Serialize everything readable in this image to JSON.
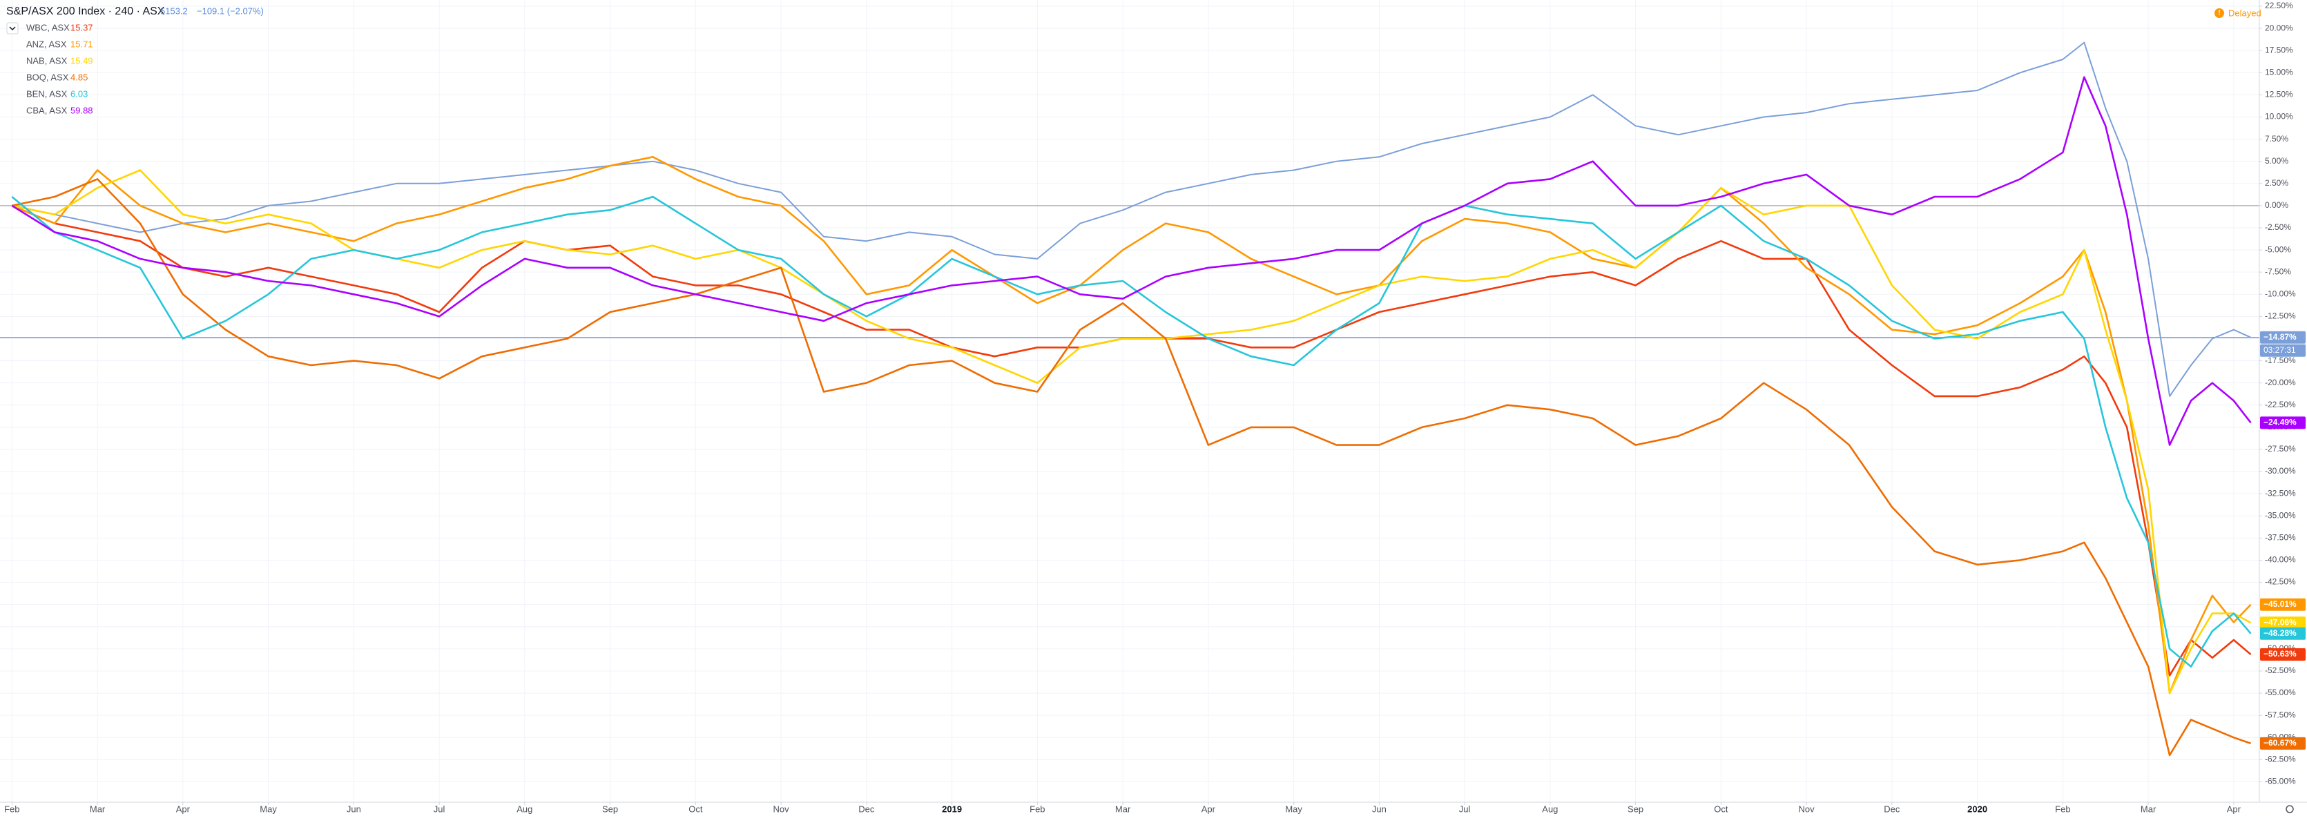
{
  "chart_data": {
    "type": "line",
    "header": {
      "title": "S&P/ASX 200 Index · 240 · ASX",
      "price": 5153.2,
      "change": "−109.1 (−2.07%)"
    },
    "status": "Delayed",
    "countdown": "03:27:31",
    "baseline": 0,
    "grid": true,
    "xlim": [
      -0.14,
      26.3
    ],
    "ylim": [
      -67.3,
      23.2
    ],
    "xticks": [
      {
        "value": 0,
        "label": "Feb"
      },
      {
        "value": 1,
        "label": "Mar"
      },
      {
        "value": 2,
        "label": "Apr"
      },
      {
        "value": 3,
        "label": "May"
      },
      {
        "value": 4,
        "label": "Jun"
      },
      {
        "value": 5,
        "label": "Jul"
      },
      {
        "value": 6,
        "label": "Aug"
      },
      {
        "value": 7,
        "label": "Sep"
      },
      {
        "value": 8,
        "label": "Oct"
      },
      {
        "value": 9,
        "label": "Nov"
      },
      {
        "value": 10,
        "label": "Dec"
      },
      {
        "value": 11,
        "label": "2019"
      },
      {
        "value": 12,
        "label": "Feb"
      },
      {
        "value": 13,
        "label": "Mar"
      },
      {
        "value": 14,
        "label": "Apr"
      },
      {
        "value": 15,
        "label": "May"
      },
      {
        "value": 16,
        "label": "Jun"
      },
      {
        "value": 17,
        "label": "Jul"
      },
      {
        "value": 18,
        "label": "Aug"
      },
      {
        "value": 19,
        "label": "Sep"
      },
      {
        "value": 20,
        "label": "Oct"
      },
      {
        "value": 21,
        "label": "Nov"
      },
      {
        "value": 22,
        "label": "Dec"
      },
      {
        "value": 23,
        "label": "2020"
      },
      {
        "value": 24,
        "label": "Feb"
      },
      {
        "value": 25,
        "label": "Mar"
      },
      {
        "value": 26,
        "label": "Apr"
      }
    ],
    "yticks": [
      {
        "value": 22.5,
        "label": "22.50%"
      },
      {
        "value": 20,
        "label": "20.00%"
      },
      {
        "value": 17.5,
        "label": "17.50%"
      },
      {
        "value": 15,
        "label": "15.00%"
      },
      {
        "value": 12.5,
        "label": "12.50%"
      },
      {
        "value": 10,
        "label": "10.00%"
      },
      {
        "value": 7.5,
        "label": "7.50%"
      },
      {
        "value": 5,
        "label": "5.00%"
      },
      {
        "value": 2.5,
        "label": "2.50%"
      },
      {
        "value": 0,
        "label": "0.00%"
      },
      {
        "value": -2.5,
        "label": "-2.50%"
      },
      {
        "value": -5,
        "label": "-5.00%"
      },
      {
        "value": -7.5,
        "label": "-7.50%"
      },
      {
        "value": -10,
        "label": "-10.00%"
      },
      {
        "value": -12.5,
        "label": "-12.50%"
      },
      {
        "value": -15,
        "label": "-15.00%"
      },
      {
        "value": -17.5,
        "label": "-17.50%"
      },
      {
        "value": -20,
        "label": "-20.00%"
      },
      {
        "value": -22.5,
        "label": "-22.50%"
      },
      {
        "value": -25,
        "label": "-25.00%"
      },
      {
        "value": -27.5,
        "label": "-27.50%"
      },
      {
        "value": -30,
        "label": "-30.00%"
      },
      {
        "value": -32.5,
        "label": "-32.50%"
      },
      {
        "value": -35,
        "label": "-35.00%"
      },
      {
        "value": -37.5,
        "label": "-37.50%"
      },
      {
        "value": -40,
        "label": "-40.00%"
      },
      {
        "value": -42.5,
        "label": "-42.50%"
      },
      {
        "value": -45,
        "label": "-45.00%"
      },
      {
        "value": -47.5,
        "label": "-47.50%"
      },
      {
        "value": -50,
        "label": "-50.00%"
      },
      {
        "value": -52.5,
        "label": "-52.50%"
      },
      {
        "value": -55,
        "label": "-55.00%"
      },
      {
        "value": -57.5,
        "label": "-57.50%"
      },
      {
        "value": -60,
        "label": "-60.00%"
      },
      {
        "value": -62.5,
        "label": "-62.50%"
      },
      {
        "value": -65,
        "label": "-65.00%"
      }
    ],
    "x": [
      0,
      0.5,
      1,
      1.5,
      2,
      2.5,
      3,
      3.5,
      4,
      4.5,
      5,
      5.5,
      6,
      6.5,
      7,
      7.5,
      8,
      8.5,
      9,
      9.5,
      10,
      10.5,
      11,
      11.5,
      12,
      12.5,
      13,
      13.5,
      14,
      14.5,
      15,
      15.5,
      16,
      16.5,
      17,
      17.5,
      18,
      18.5,
      19,
      19.5,
      20,
      20.5,
      21,
      21.5,
      22,
      22.5,
      23,
      23.5,
      24,
      24.25,
      24.5,
      24.75,
      25,
      25.25,
      25.5,
      25.75,
      26,
      26.2
    ],
    "series": [
      {
        "name": "S&P/ASX 200 Index · 240 · ASX",
        "color": "#7b9fd8",
        "values": [
          0,
          -1,
          -2,
          -3,
          -2,
          -1.5,
          0,
          0.5,
          1.5,
          2.5,
          2.5,
          3,
          3.5,
          4,
          4.5,
          5,
          4,
          2.5,
          1.5,
          -3.5,
          -4,
          -3,
          -3.5,
          -5.5,
          -6,
          -2,
          -0.5,
          1.5,
          2.5,
          3.5,
          4,
          5,
          5.5,
          7,
          8,
          9,
          10,
          12.5,
          9,
          8,
          9,
          10,
          10.5,
          11.5,
          12,
          12.5,
          13,
          15,
          16.5,
          18.4,
          11,
          5,
          -6,
          -21.5,
          -18,
          -15,
          -14,
          -14.87
        ],
        "value_labels": [
          null,
          null,
          null,
          null,
          null,
          null,
          null,
          null,
          null,
          null,
          null,
          null,
          null,
          null,
          null,
          null,
          null,
          null,
          null,
          null,
          null,
          null,
          null,
          null,
          null,
          null,
          null,
          null,
          null,
          null,
          null,
          null,
          null,
          null,
          null,
          null,
          null,
          null,
          null,
          null,
          null,
          null,
          null,
          null,
          null,
          null,
          null,
          null,
          null,
          null,
          null,
          null,
          null,
          null,
          null,
          null,
          null,
          "−14.87%"
        ]
      },
      {
        "name": "WBC, ASX",
        "price": 15.37,
        "color": "#f23a0c",
        "values": [
          0,
          -2,
          -3,
          -4,
          -7,
          -8,
          -7,
          -8,
          -9,
          -10,
          -12,
          -7,
          -4,
          -5,
          -4.5,
          -8,
          -9,
          -9,
          -10,
          -12,
          -14,
          -14,
          -16,
          -17,
          -16,
          -16,
          -15,
          -15,
          -15,
          -16,
          -16,
          -14,
          -12,
          -11,
          -10,
          -9,
          -8,
          -7.5,
          -9,
          -6,
          -4,
          -6,
          -6,
          -14,
          -18,
          -21.5,
          -21.5,
          -20.5,
          -18.5,
          -17,
          -20,
          -25,
          -38,
          -53,
          -49,
          -51,
          -49,
          -50.63
        ],
        "value_labels": [
          null,
          null,
          null,
          null,
          null,
          null,
          null,
          null,
          null,
          null,
          null,
          null,
          null,
          null,
          null,
          null,
          null,
          null,
          null,
          null,
          null,
          null,
          null,
          null,
          null,
          null,
          null,
          null,
          null,
          null,
          null,
          null,
          null,
          null,
          null,
          null,
          null,
          null,
          null,
          null,
          null,
          null,
          null,
          null,
          null,
          null,
          null,
          null,
          null,
          null,
          null,
          null,
          null,
          null,
          null,
          null,
          null,
          "−50.63%"
        ]
      },
      {
        "name": "ANZ, ASX",
        "price": 15.71,
        "color": "#ff9800",
        "values": [
          0,
          -2,
          4,
          0,
          -2,
          -3,
          -2,
          -3,
          -4,
          -2,
          -1,
          0.5,
          2,
          3,
          4.5,
          5.5,
          3,
          1,
          0,
          -4,
          -10,
          -9,
          -5,
          -8,
          -11,
          -9,
          -5,
          -2,
          -3,
          -6,
          -8,
          -10,
          -9,
          -4,
          -1.5,
          -2,
          -3,
          -6,
          -7,
          -3,
          2,
          -2,
          -7,
          -10,
          -14,
          -14.5,
          -13.5,
          -11,
          -8,
          -5,
          -12,
          -22,
          -36,
          -55,
          -49,
          -44,
          -47,
          -45.01
        ],
        "value_labels": [
          null,
          null,
          null,
          null,
          null,
          null,
          null,
          null,
          null,
          null,
          null,
          null,
          null,
          null,
          null,
          null,
          null,
          null,
          null,
          null,
          null,
          null,
          null,
          null,
          null,
          null,
          null,
          null,
          null,
          null,
          null,
          null,
          null,
          null,
          null,
          null,
          null,
          null,
          null,
          null,
          null,
          null,
          null,
          null,
          null,
          null,
          null,
          null,
          null,
          null,
          null,
          null,
          null,
          null,
          null,
          null,
          null,
          "−45.01%"
        ]
      },
      {
        "name": "NAB, ASX",
        "price": 15.49,
        "color": "#ffd600",
        "values": [
          0,
          -1,
          2,
          4,
          -1,
          -2,
          -1,
          -2,
          -5,
          -6,
          -7,
          -5,
          -4,
          -5,
          -5.5,
          -4.5,
          -6,
          -5,
          -7,
          -10,
          -13,
          -15,
          -16,
          -18,
          -20,
          -16,
          -15,
          -15,
          -14.5,
          -14,
          -13,
          -11,
          -9,
          -8,
          -8.5,
          -8,
          -6,
          -5,
          -7,
          -3,
          2,
          -1,
          0,
          0,
          -9,
          -14,
          -15,
          -12,
          -10,
          -5,
          -14,
          -22,
          -32,
          -55,
          -50,
          -46,
          -46,
          -47.06
        ],
        "value_labels": [
          null,
          null,
          null,
          null,
          null,
          null,
          null,
          null,
          null,
          null,
          null,
          null,
          null,
          null,
          null,
          null,
          null,
          null,
          null,
          null,
          null,
          null,
          null,
          null,
          null,
          null,
          null,
          null,
          null,
          null,
          null,
          null,
          null,
          null,
          null,
          null,
          null,
          null,
          null,
          null,
          null,
          null,
          null,
          null,
          null,
          null,
          null,
          null,
          null,
          null,
          null,
          null,
          null,
          null,
          null,
          null,
          null,
          "−47.06%"
        ]
      },
      {
        "name": "BOQ, ASX",
        "price": 4.85,
        "color": "#ef6c00",
        "values": [
          0,
          1,
          3,
          -2,
          -10,
          -14,
          -17,
          -18,
          -17.5,
          -18,
          -19.5,
          -17,
          -16,
          -15,
          -12,
          -11,
          -10,
          -8.5,
          -7,
          -21,
          -20,
          -18,
          -17.5,
          -20,
          -21,
          -14,
          -11,
          -15,
          -27,
          -25,
          -25,
          -27,
          -27,
          -25,
          -24,
          -22.5,
          -23,
          -24,
          -27,
          -26,
          -24,
          -20,
          -23,
          -27,
          -34,
          -39,
          -40.5,
          -40,
          -39,
          -38,
          -42,
          -47,
          -52,
          -62,
          -58,
          -59,
          -60,
          -60.67
        ],
        "value_labels": [
          null,
          null,
          null,
          null,
          null,
          null,
          null,
          null,
          null,
          null,
          null,
          null,
          null,
          null,
          null,
          null,
          null,
          null,
          null,
          null,
          null,
          null,
          null,
          null,
          null,
          null,
          null,
          null,
          null,
          null,
          null,
          null,
          null,
          null,
          null,
          null,
          null,
          null,
          null,
          null,
          null,
          null,
          null,
          null,
          null,
          null,
          null,
          null,
          null,
          null,
          null,
          null,
          null,
          null,
          null,
          null,
          null,
          "−60.67%"
        ]
      },
      {
        "name": "BEN, ASX",
        "price": 6.03,
        "color": "#26c6da",
        "values": [
          1,
          -3,
          -5,
          -7,
          -15,
          -13,
          -10,
          -6,
          -5,
          -6,
          -5,
          -3,
          -2,
          -1,
          -0.5,
          1,
          -2,
          -5,
          -6,
          -10,
          -12.5,
          -10,
          -6,
          -8,
          -10,
          -9,
          -8.5,
          -12,
          -15,
          -17,
          -18,
          -14,
          -11,
          -2,
          0,
          -1,
          -1.5,
          -2,
          -6,
          -3,
          0,
          -4,
          -6,
          -9,
          -13,
          -15,
          -14.5,
          -13,
          -12,
          -15,
          -25,
          -33,
          -38,
          -50,
          -52,
          -48,
          -46,
          -48.28
        ],
        "value_labels": [
          null,
          null,
          null,
          null,
          null,
          null,
          null,
          null,
          null,
          null,
          null,
          null,
          null,
          null,
          null,
          null,
          null,
          null,
          null,
          null,
          null,
          null,
          null,
          null,
          null,
          null,
          null,
          null,
          null,
          null,
          null,
          null,
          null,
          null,
          null,
          null,
          null,
          null,
          null,
          null,
          null,
          null,
          null,
          null,
          null,
          null,
          null,
          null,
          null,
          null,
          null,
          null,
          null,
          null,
          null,
          null,
          null,
          "−48.28%"
        ]
      },
      {
        "name": "CBA, ASX",
        "price": 59.88,
        "color": "#aa00ff",
        "values": [
          0,
          -3,
          -4,
          -6,
          -7,
          -7.5,
          -8.5,
          -9,
          -10,
          -11,
          -12.5,
          -9,
          -6,
          -7,
          -7,
          -9,
          -10,
          -11,
          -12,
          -13,
          -11,
          -10,
          -9,
          -8.5,
          -8,
          -10,
          -10.5,
          -8,
          -7,
          -6.5,
          -6,
          -5,
          -5,
          -2,
          0,
          2.5,
          3,
          5,
          0,
          0,
          1,
          2.5,
          3.5,
          0,
          -1,
          1,
          1,
          3,
          6,
          14.5,
          9,
          -1,
          -15,
          -27,
          -22,
          -20,
          -22,
          -24.49
        ],
        "value_labels": [
          null,
          null,
          null,
          null,
          null,
          null,
          null,
          null,
          null,
          null,
          null,
          null,
          null,
          null,
          null,
          null,
          null,
          null,
          null,
          null,
          null,
          null,
          null,
          null,
          null,
          null,
          null,
          null,
          null,
          null,
          null,
          null,
          null,
          null,
          null,
          null,
          null,
          null,
          null,
          null,
          null,
          null,
          null,
          null,
          null,
          null,
          null,
          null,
          null,
          null,
          null,
          null,
          null,
          null,
          null,
          null,
          null,
          "−24.49%"
        ]
      }
    ]
  }
}
